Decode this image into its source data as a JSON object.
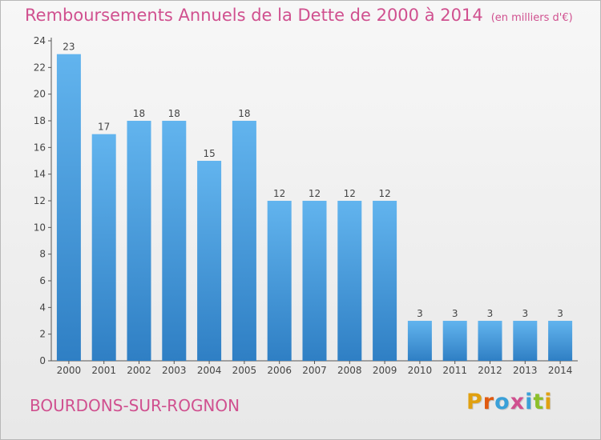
{
  "header": {
    "title": "Remboursements Annuels de la Dette de 2000 à 2014",
    "unit": "(en milliers d'€)"
  },
  "footer": {
    "commune": "BOURDONS-SUR-ROGNON",
    "logo_letters": [
      "P",
      "r",
      "o",
      "x",
      "i",
      "t",
      "i"
    ],
    "logo_colors": [
      "#e0a010",
      "#e05a10",
      "#3aa0d8",
      "#d0508f",
      "#3aa0d8",
      "#8cbf2a",
      "#e0a010"
    ]
  },
  "colors": {
    "title": "#d0508f",
    "bar_top": "#62b4ee",
    "bar_bottom": "#2f7fc4",
    "axis": "#555555",
    "text": "#444444"
  },
  "chart_data": {
    "type": "bar",
    "categories": [
      "2000",
      "2001",
      "2002",
      "2003",
      "2004",
      "2005",
      "2006",
      "2007",
      "2008",
      "2009",
      "2010",
      "2011",
      "2012",
      "2013",
      "2014"
    ],
    "values": [
      23,
      17,
      18,
      18,
      15,
      18,
      12,
      12,
      12,
      12,
      3,
      3,
      3,
      3,
      3
    ],
    "data_labels": [
      "23",
      "17",
      "18",
      "18",
      "15",
      "18",
      "12",
      "12",
      "12",
      "12",
      "3",
      "3",
      "3",
      "3",
      "3"
    ],
    "y_ticks": [
      "0",
      "2",
      "4",
      "6",
      "8",
      "10",
      "12",
      "14",
      "16",
      "18",
      "20",
      "22",
      "24"
    ],
    "ylim": [
      0,
      24
    ],
    "grid": false,
    "title": "Remboursements Annuels de la Dette de 2000 à 2014",
    "xlabel": "",
    "ylabel": ""
  }
}
